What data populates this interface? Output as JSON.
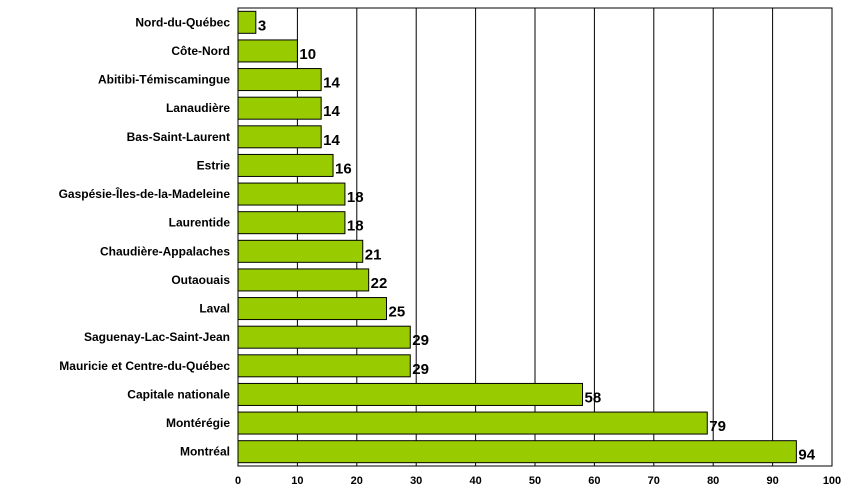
{
  "chart_data": {
    "type": "bar",
    "orientation": "horizontal",
    "categories": [
      "Nord-du-Québec",
      "Côte-Nord",
      "Abitibi-Témiscamingue",
      "Lanaudière",
      "Bas-Saint-Laurent",
      "Estrie",
      "Gaspésie-Îles-de-la-Madeleine",
      "Laurentide",
      "Chaudière-Appalaches",
      "Outaouais",
      "Laval",
      "Saguenay-Lac-Saint-Jean",
      "Mauricie et Centre-du-Québec",
      "Capitale nationale",
      "Montérégie",
      "Montréal"
    ],
    "values": [
      3,
      10,
      14,
      14,
      14,
      16,
      18,
      18,
      21,
      22,
      25,
      29,
      29,
      58,
      79,
      94
    ],
    "title": "",
    "xlabel": "",
    "ylabel": "",
    "xlim": [
      0,
      100
    ],
    "xticks": [
      0,
      10,
      20,
      30,
      40,
      50,
      60,
      70,
      80,
      90,
      100
    ],
    "grid": "vertical",
    "legend": "none",
    "colors": {
      "bar_fill": "#99cc00",
      "bar_stroke": "#000000",
      "grid": "#000000",
      "background": "#ffffff"
    }
  }
}
